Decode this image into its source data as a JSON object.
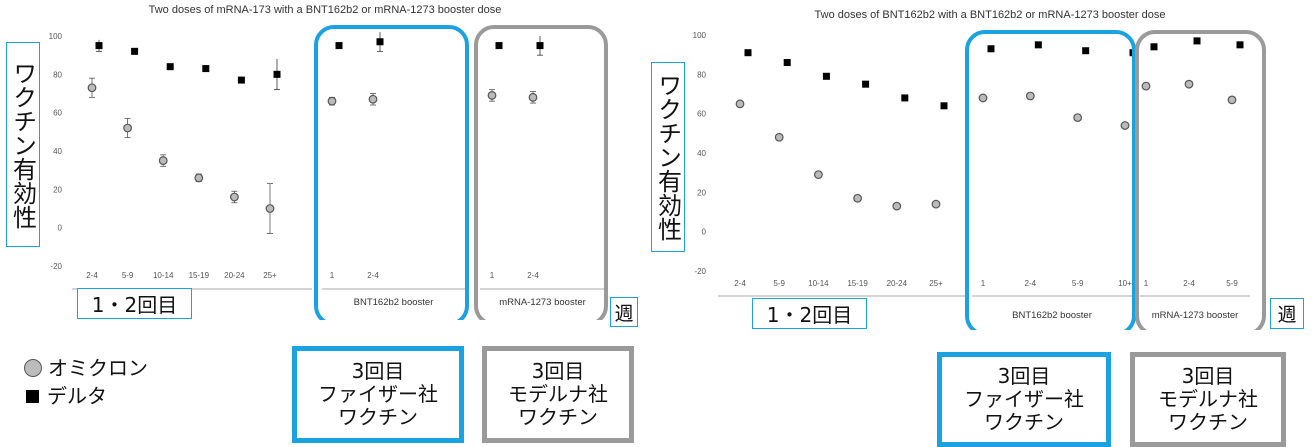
{
  "labels": {
    "y_label": "ワクチン有効性",
    "doses_1_2": "1・2回目",
    "week": "週",
    "dose3_pfizer": "3回目\nファイザー社\nワクチン",
    "dose3_moderna": "3回目\nモデルナ社\nワクチン"
  },
  "legend": {
    "omicron": "オミクロン",
    "delta": "デルタ"
  },
  "colors": {
    "pfizer_box": "#1aa3e0",
    "moderna_box": "#9a9a9a",
    "omicron_marker": "#bbbbbb",
    "delta_marker": "#000000"
  },
  "chart_data": [
    {
      "type": "scatter",
      "title": "Two doses of mRNA-173 with a BNT162b2 or mRNA-1273 booster dose",
      "ylim": [
        -20,
        100
      ],
      "yticks": [
        -20,
        0,
        20,
        40,
        60,
        80,
        100
      ],
      "grid": false,
      "groups": [
        {
          "name": "",
          "categories": [
            "2-4",
            "5-9",
            "10-14",
            "15-19",
            "20-24",
            "25+"
          ],
          "omicron": [
            73,
            52,
            35,
            26,
            16,
            10
          ],
          "omicron_err": [
            5,
            5,
            3,
            2,
            3,
            13
          ],
          "delta": [
            95,
            92,
            84,
            83,
            77,
            80
          ],
          "delta_err": [
            3,
            0,
            0,
            0,
            0,
            8
          ]
        },
        {
          "name": "BNT162b2 booster",
          "categories": [
            "1",
            "2-4"
          ],
          "omicron": [
            66,
            67
          ],
          "omicron_err": [
            2,
            3
          ],
          "delta": [
            95,
            97
          ],
          "delta_err": [
            1,
            5
          ]
        },
        {
          "name": "mRNA-1273 booster",
          "categories": [
            "1",
            "2-4"
          ],
          "omicron": [
            69,
            68
          ],
          "omicron_err": [
            3,
            3
          ],
          "delta": [
            95,
            95
          ],
          "delta_err": [
            0,
            5
          ]
        }
      ]
    },
    {
      "type": "scatter",
      "title": "Two doses of BNT162b2 with a BNT162b2 or mRNA-1273 booster dose",
      "ylim": [
        -20,
        100
      ],
      "yticks": [
        -20,
        0,
        20,
        40,
        60,
        80,
        100
      ],
      "grid": false,
      "groups": [
        {
          "name": "",
          "categories": [
            "2-4",
            "5-9",
            "10-14",
            "15-19",
            "20-24",
            "25+"
          ],
          "omicron": [
            65,
            48,
            29,
            17,
            13,
            14
          ],
          "delta": [
            91,
            86,
            79,
            75,
            68,
            64
          ]
        },
        {
          "name": "BNT162b2 booster",
          "categories": [
            "1",
            "2-4",
            "5-9",
            "10+"
          ],
          "omicron": [
            68,
            69,
            58,
            54
          ],
          "delta": [
            93,
            95,
            92,
            91
          ]
        },
        {
          "name": "mRNA-1273 booster",
          "categories": [
            "1",
            "2-4",
            "5-9"
          ],
          "omicron": [
            74,
            75,
            67
          ],
          "delta": [
            94,
            97,
            95
          ]
        }
      ]
    }
  ]
}
